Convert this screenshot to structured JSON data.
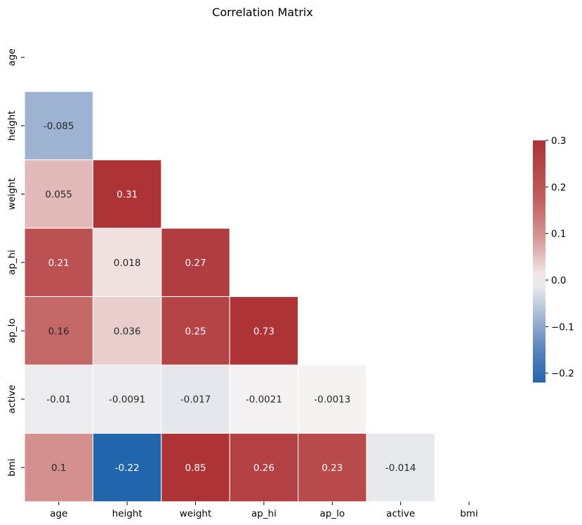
{
  "chart_data": {
    "type": "heatmap",
    "title": "Correlation Matrix",
    "variables": [
      "age",
      "height",
      "weight",
      "ap_hi",
      "ap_lo",
      "active",
      "bmi"
    ],
    "mask": "upper-triangle-including-diagonal",
    "cells": [
      {
        "row": "height",
        "col": "age",
        "value": -0.085,
        "label": "-0.085"
      },
      {
        "row": "weight",
        "col": "age",
        "value": 0.055,
        "label": "0.055"
      },
      {
        "row": "weight",
        "col": "height",
        "value": 0.31,
        "label": "0.31"
      },
      {
        "row": "ap_hi",
        "col": "age",
        "value": 0.21,
        "label": "0.21"
      },
      {
        "row": "ap_hi",
        "col": "height",
        "value": 0.018,
        "label": "0.018"
      },
      {
        "row": "ap_hi",
        "col": "weight",
        "value": 0.27,
        "label": "0.27"
      },
      {
        "row": "ap_lo",
        "col": "age",
        "value": 0.16,
        "label": "0.16"
      },
      {
        "row": "ap_lo",
        "col": "height",
        "value": 0.036,
        "label": "0.036"
      },
      {
        "row": "ap_lo",
        "col": "weight",
        "value": 0.25,
        "label": "0.25"
      },
      {
        "row": "ap_lo",
        "col": "ap_hi",
        "value": 0.73,
        "label": "0.73"
      },
      {
        "row": "active",
        "col": "age",
        "value": -0.01,
        "label": "-0.01"
      },
      {
        "row": "active",
        "col": "height",
        "value": -0.0091,
        "label": "-0.0091"
      },
      {
        "row": "active",
        "col": "weight",
        "value": -0.017,
        "label": "-0.017"
      },
      {
        "row": "active",
        "col": "ap_hi",
        "value": -0.0021,
        "label": "-0.0021"
      },
      {
        "row": "active",
        "col": "ap_lo",
        "value": -0.0013,
        "label": "-0.0013"
      },
      {
        "row": "bmi",
        "col": "age",
        "value": 0.1,
        "label": "0.1"
      },
      {
        "row": "bmi",
        "col": "height",
        "value": -0.22,
        "label": "-0.22"
      },
      {
        "row": "bmi",
        "col": "weight",
        "value": 0.85,
        "label": "0.85"
      },
      {
        "row": "bmi",
        "col": "ap_hi",
        "value": 0.26,
        "label": "0.26"
      },
      {
        "row": "bmi",
        "col": "ap_lo",
        "value": 0.23,
        "label": "0.23"
      },
      {
        "row": "bmi",
        "col": "active",
        "value": -0.014,
        "label": "-0.014"
      }
    ],
    "colormap": "vlag (blue-white-red), centered at 0",
    "color_range": [
      -0.22,
      0.3
    ],
    "colorbar": {
      "ticks": [
        0.3,
        0.2,
        0.1,
        0.0,
        -0.1,
        -0.2
      ],
      "tick_labels": [
        "0.3",
        "0.2",
        "0.1",
        "0.0",
        "−0.1",
        "−0.2"
      ]
    },
    "grid": false,
    "legend": "colorbar-right"
  }
}
